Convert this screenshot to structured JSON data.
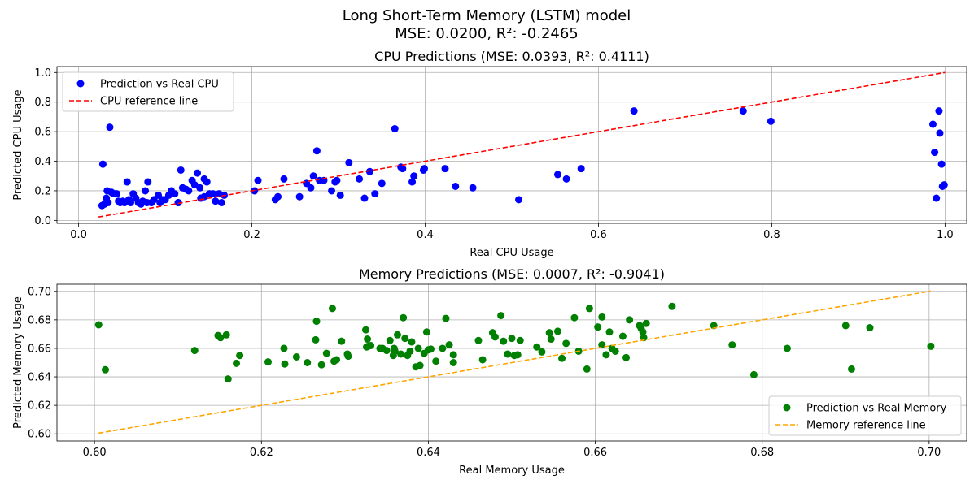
{
  "figure": {
    "title_line1": "Long Short-Term Memory (LSTM) model",
    "title_line2": "MSE: 0.0200, R²: -0.2465"
  },
  "chart_data": [
    {
      "type": "scatter",
      "title": "CPU Predictions (MSE: 0.0393, R²: 0.4111)",
      "xlabel": "Real CPU Usage",
      "ylabel": "Predicted CPU Usage",
      "xlim": [
        -0.025,
        1.025
      ],
      "ylim": [
        -0.02,
        1.04
      ],
      "xticks": [
        0.0,
        0.2,
        0.4,
        0.6,
        0.8,
        1.0
      ],
      "xtick_labels": [
        "0.0",
        "0.2",
        "0.4",
        "0.6",
        "0.8",
        "1.0"
      ],
      "yticks": [
        0.0,
        0.2,
        0.4,
        0.6,
        0.8,
        1.0
      ],
      "ytick_labels": [
        "0.0",
        "0.2",
        "0.4",
        "0.6",
        "0.8",
        "1.0"
      ],
      "grid": true,
      "legend_position": "top-left",
      "series": [
        {
          "name": "Prediction vs Real CPU",
          "kind": "scatter",
          "color": "#0000ff",
          "x": [
            0.027,
            0.033,
            0.034,
            0.036,
            0.038,
            0.04,
            0.042,
            0.046,
            0.048,
            0.051,
            0.056,
            0.058,
            0.06,
            0.063,
            0.066,
            0.069,
            0.072,
            0.074,
            0.077,
            0.08,
            0.084,
            0.087,
            0.092,
            0.094,
            0.097,
            0.1,
            0.104,
            0.107,
            0.111,
            0.115,
            0.118,
            0.12,
            0.124,
            0.127,
            0.131,
            0.134,
            0.137,
            0.14,
            0.141,
            0.145,
            0.148,
            0.151,
            0.155,
            0.158,
            0.162,
            0.165,
            0.168,
            0.028,
            0.03,
            0.032,
            0.044,
            0.053,
            0.079,
            0.115,
            0.145,
            0.203,
            0.207,
            0.227,
            0.23,
            0.237,
            0.255,
            0.263,
            0.268,
            0.271,
            0.275,
            0.278,
            0.283,
            0.292,
            0.296,
            0.298,
            0.302,
            0.312,
            0.324,
            0.33,
            0.336,
            0.342,
            0.35,
            0.365,
            0.372,
            0.374,
            0.385,
            0.387,
            0.398,
            0.399,
            0.423,
            0.435,
            0.455,
            0.508,
            0.553,
            0.563,
            0.58,
            0.641,
            0.767,
            0.799,
            0.986,
            0.988,
            0.99,
            0.993,
            0.994,
            0.996,
            0.997,
            0.999
          ],
          "y": [
            0.1,
            0.2,
            0.12,
            0.63,
            0.19,
            0.18,
            0.18,
            0.13,
            0.12,
            0.13,
            0.26,
            0.14,
            0.12,
            0.18,
            0.15,
            0.12,
            0.11,
            0.13,
            0.2,
            0.26,
            0.12,
            0.14,
            0.17,
            0.12,
            0.14,
            0.14,
            0.17,
            0.2,
            0.18,
            0.12,
            0.34,
            0.22,
            0.21,
            0.2,
            0.27,
            0.24,
            0.32,
            0.22,
            0.15,
            0.28,
            0.26,
            0.18,
            0.18,
            0.13,
            0.18,
            0.12,
            0.17,
            0.38,
            0.11,
            0.15,
            0.18,
            0.12,
            0.12,
            0.12,
            0.16,
            0.2,
            0.27,
            0.14,
            0.16,
            0.28,
            0.16,
            0.25,
            0.22,
            0.3,
            0.47,
            0.27,
            0.27,
            0.2,
            0.26,
            0.27,
            0.17,
            0.39,
            0.28,
            0.15,
            0.33,
            0.18,
            0.25,
            0.62,
            0.36,
            0.35,
            0.26,
            0.3,
            0.34,
            0.35,
            0.35,
            0.23,
            0.22,
            0.14,
            0.31,
            0.28,
            0.35,
            0.74,
            0.74,
            0.67,
            0.65,
            0.46,
            0.15,
            0.74,
            0.59,
            0.38,
            0.23,
            0.24
          ]
        },
        {
          "name": "CPU reference line",
          "kind": "line",
          "style": "dashed",
          "color": "#ff0000",
          "x": [
            0.023,
            1.0
          ],
          "y": [
            0.023,
            1.0
          ]
        }
      ]
    },
    {
      "type": "scatter",
      "title": "Memory Predictions (MSE: 0.0007, R²: -0.9041)",
      "xlabel": "Real Memory Usage",
      "ylabel": "Predicted Memory Usage",
      "xlim": [
        0.5955,
        0.7045
      ],
      "ylim": [
        0.595,
        0.705
      ],
      "xticks": [
        0.6,
        0.62,
        0.64,
        0.66,
        0.68,
        0.7
      ],
      "xtick_labels": [
        "0.60",
        "0.62",
        "0.64",
        "0.66",
        "0.68",
        "0.70"
      ],
      "yticks": [
        0.6,
        0.62,
        0.64,
        0.66,
        0.68,
        0.7
      ],
      "ytick_labels": [
        "0.60",
        "0.62",
        "0.64",
        "0.66",
        "0.68",
        "0.70"
      ],
      "grid": true,
      "legend_position": "bottom-right",
      "series": [
        {
          "name": "Prediction vs Real Memory",
          "kind": "scatter",
          "color": "#008000",
          "x": [
            0.6005,
            0.6013,
            0.612,
            0.6148,
            0.6151,
            0.616,
            0.6158,
            0.617,
            0.6174,
            0.6208,
            0.6227,
            0.6228,
            0.6242,
            0.6255,
            0.6265,
            0.6266,
            0.6272,
            0.6278,
            0.6285,
            0.629,
            0.6287,
            0.6296,
            0.6303,
            0.6304,
            0.6325,
            0.6326,
            0.6327,
            0.6328,
            0.6331,
            0.6342,
            0.635,
            0.6354,
            0.6358,
            0.6359,
            0.6363,
            0.6367,
            0.637,
            0.6372,
            0.6375,
            0.6378,
            0.638,
            0.6385,
            0.6388,
            0.639,
            0.6395,
            0.6398,
            0.64,
            0.6403,
            0.6409,
            0.6417,
            0.6421,
            0.6425,
            0.643,
            0.643,
            0.646,
            0.6465,
            0.6477,
            0.648,
            0.6487,
            0.649,
            0.6495,
            0.65,
            0.6503,
            0.6507,
            0.651,
            0.653,
            0.6536,
            0.6545,
            0.6547,
            0.6555,
            0.656,
            0.6565,
            0.6575,
            0.658,
            0.659,
            0.6593,
            0.6603,
            0.6608,
            0.6608,
            0.6613,
            0.6617,
            0.662,
            0.6624,
            0.6633,
            0.6637,
            0.6641,
            0.6653,
            0.6655,
            0.6657,
            0.6658,
            0.6661,
            0.6692,
            0.6742,
            0.6764,
            0.679,
            0.683,
            0.69,
            0.6907,
            0.6929,
            0.7002,
            0.636,
            0.6345
          ],
          "y": [
            0.6765,
            0.645,
            0.6585,
            0.669,
            0.6675,
            0.6385,
            0.6695,
            0.6495,
            0.655,
            0.6505,
            0.66,
            0.649,
            0.654,
            0.65,
            0.666,
            0.679,
            0.6485,
            0.6565,
            0.688,
            0.652,
            0.651,
            0.665,
            0.656,
            0.6545,
            0.673,
            0.661,
            0.6665,
            0.6615,
            0.662,
            0.66,
            0.6585,
            0.6655,
            0.655,
            0.66,
            0.6695,
            0.656,
            0.6815,
            0.667,
            0.655,
            0.658,
            0.6645,
            0.647,
            0.66,
            0.648,
            0.6565,
            0.6715,
            0.659,
            0.6595,
            0.651,
            0.66,
            0.681,
            0.6625,
            0.65,
            0.6555,
            0.6655,
            0.652,
            0.671,
            0.668,
            0.683,
            0.665,
            0.656,
            0.667,
            0.655,
            0.6555,
            0.6655,
            0.661,
            0.6575,
            0.671,
            0.6665,
            0.672,
            0.653,
            0.6635,
            0.6815,
            0.658,
            0.6455,
            0.688,
            0.675,
            0.682,
            0.6625,
            0.6555,
            0.6715,
            0.66,
            0.658,
            0.6685,
            0.6535,
            0.68,
            0.676,
            0.674,
            0.6715,
            0.6675,
            0.6775,
            0.6895,
            0.676,
            0.6625,
            0.6415,
            0.66,
            0.676,
            0.6455,
            0.6745,
            0.6615,
            0.658,
            0.66
          ],
          "extra_note": ""
        },
        {
          "name": "Memory reference line",
          "kind": "line",
          "style": "dashed",
          "color": "#ffa500",
          "x": [
            0.6005,
            0.7002
          ],
          "y": [
            0.6005,
            0.7002
          ]
        }
      ]
    }
  ]
}
